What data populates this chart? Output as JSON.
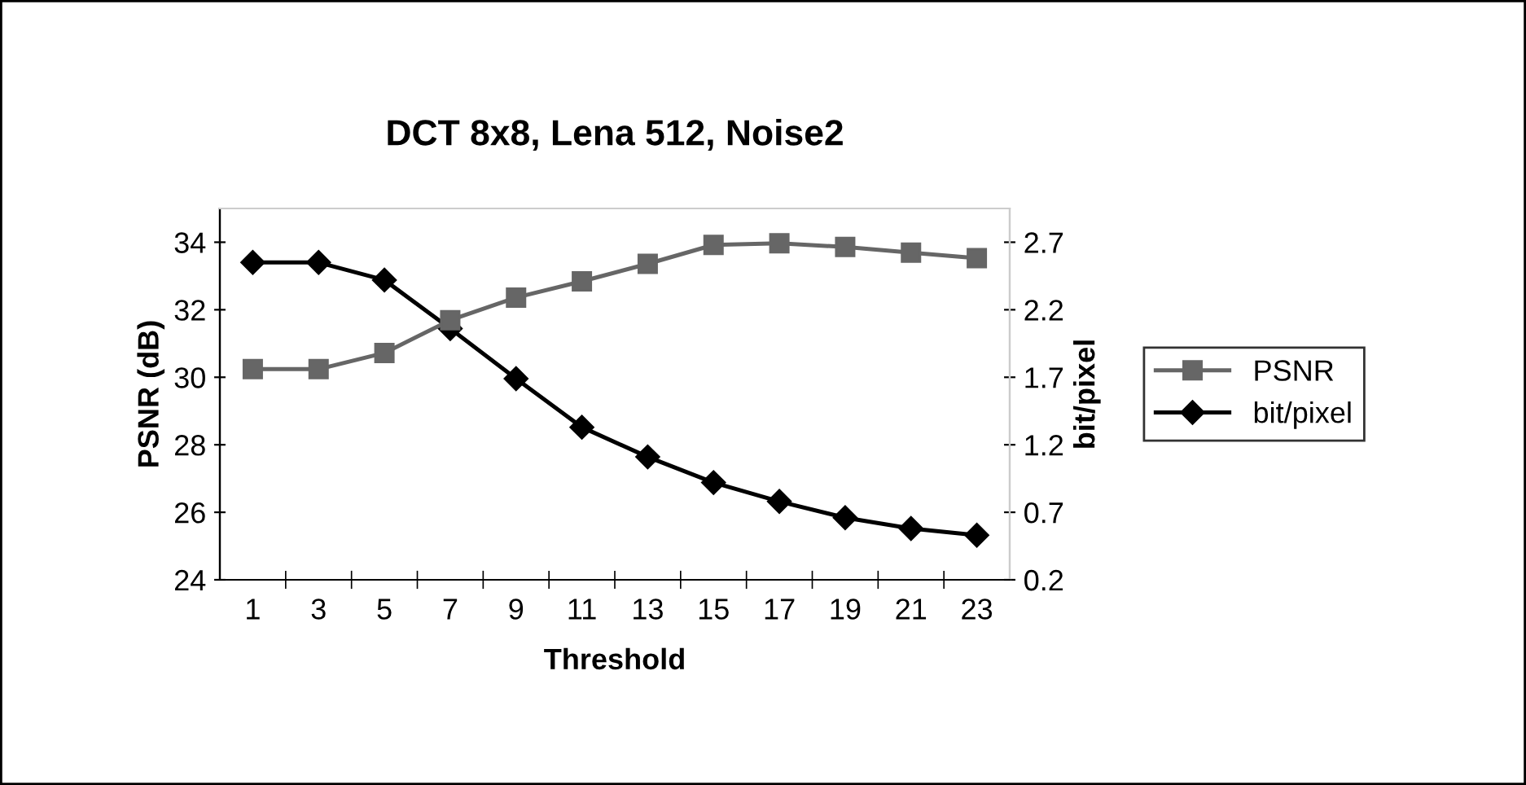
{
  "chart_data": {
    "type": "line",
    "title": "DCT 8x8, Lena 512, Noise2",
    "xlabel": "Threshold",
    "ylabel": "PSNR (dB)",
    "y2label": "bit/pixel",
    "categories": [
      "1",
      "3",
      "5",
      "7",
      "9",
      "11",
      "13",
      "15",
      "17",
      "19",
      "21",
      "23"
    ],
    "series": [
      {
        "name": "PSNR",
        "color": "#666666",
        "marker": "square",
        "values": [
          30.24,
          30.24,
          30.72,
          31.69,
          32.36,
          32.84,
          33.36,
          33.92,
          33.97,
          33.86,
          33.69,
          33.53
        ]
      },
      {
        "name": "bit/pixel",
        "color": "#000000",
        "marker": "diamond",
        "axis": "y2",
        "values": [
          2.55,
          2.55,
          2.42,
          2.06,
          1.69,
          1.33,
          1.11,
          0.92,
          0.78,
          0.66,
          0.58,
          0.53
        ]
      }
    ],
    "ylim": [
      24,
      35
    ],
    "yticks": [
      24,
      26,
      28,
      30,
      32,
      34
    ],
    "y2lim": [
      0.2,
      2.95
    ],
    "y2ticks": [
      {
        "value": 0.2,
        "label": "0.2"
      },
      {
        "value": 0.7,
        "label": "0.7"
      },
      {
        "value": 1.2,
        "label": "1.2"
      },
      {
        "value": 1.7,
        "label": "1.7"
      },
      {
        "value": 2.2,
        "label": "2.2"
      },
      {
        "value": 2.7,
        "label": "2.7"
      }
    ],
    "grid": false,
    "legend": "right",
    "line_style": "solid"
  }
}
